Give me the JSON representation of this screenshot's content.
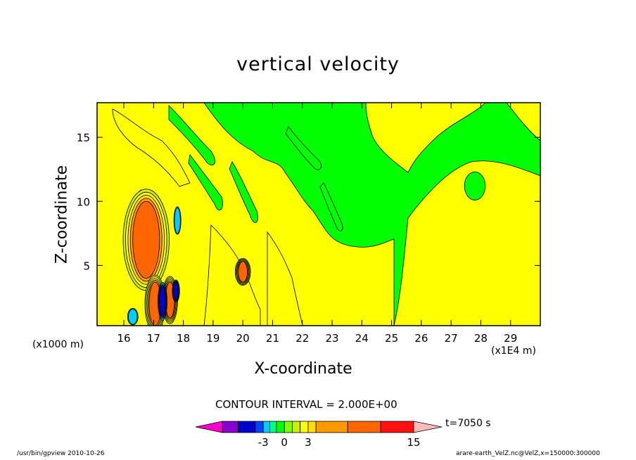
{
  "chart_data": {
    "type": "heatmap",
    "title": "vertical velocity",
    "xlabel": "X-coordinate",
    "ylabel": "Z-coordinate",
    "x_unit_label": "(x1E4 m)",
    "y_unit_label": "(x1000 m)",
    "x_ticks": [
      16,
      17,
      18,
      19,
      20,
      21,
      22,
      23,
      24,
      25,
      26,
      27,
      28,
      29
    ],
    "y_ticks": [
      5,
      10,
      15
    ],
    "xlim": [
      15.1,
      30.0
    ],
    "ylim": [
      0.3,
      17.7
    ],
    "contour_interval_label": "CONTOUR INTERVAL = 2.000E+00",
    "time_label": "t=7050 s",
    "colorbar": {
      "tick_values": [
        -3,
        0,
        3,
        15
      ],
      "tick_labels": [
        "-3",
        "0",
        "3",
        "15"
      ]
    },
    "features": [
      {
        "kind": "positive",
        "level": 9,
        "cx": 16.75,
        "cy": 7.0,
        "rx": 0.45,
        "ry": 3.0
      },
      {
        "kind": "positive",
        "level": 9,
        "cx": 17.05,
        "cy": 2.0,
        "rx": 0.2,
        "ry": 1.7
      },
      {
        "kind": "positive",
        "level": 9,
        "cx": 17.55,
        "cy": 2.3,
        "rx": 0.15,
        "ry": 1.4
      },
      {
        "kind": "negative",
        "level": -5,
        "cx": 17.3,
        "cy": 2.2,
        "rx": 0.1,
        "ry": 1.2
      },
      {
        "kind": "negative",
        "level": -5,
        "cx": 17.75,
        "cy": 3.0,
        "rx": 0.08,
        "ry": 0.7
      },
      {
        "kind": "negative",
        "level": -1,
        "cx": 16.3,
        "cy": 1.0,
        "rx": 0.15,
        "ry": 0.6
      },
      {
        "kind": "negative",
        "level": -1,
        "cx": 17.8,
        "cy": 8.5,
        "rx": 0.1,
        "ry": 1.0
      },
      {
        "kind": "positive",
        "level": 9,
        "cx": 20.0,
        "cy": 4.5,
        "rx": 0.15,
        "ry": 0.8
      },
      {
        "kind": "negative",
        "level": 0,
        "cx": 27.8,
        "cy": 11.2,
        "rx": 0.35,
        "ry": 1.1
      }
    ]
  },
  "colors": {
    "background_green": "#00ff00",
    "light_green": "#80ff00",
    "yellow": "#ffff00",
    "orange": "#ff6600",
    "colorbar": [
      "#ff00cc",
      "#8800cc",
      "#0000cc",
      "#0044ff",
      "#00ccff",
      "#00ff88",
      "#00ff00",
      "#80ff00",
      "#ccee00",
      "#ffff00",
      "#ffdd00",
      "#ff9900",
      "#ff6600",
      "#ff1111",
      "#ff7777",
      "#ffbbbb"
    ]
  },
  "footer": {
    "left": "/usr/bin/gpview   2010-10-26",
    "right": "arare-earth_VelZ.nc@VelZ,x=150000:300000"
  }
}
